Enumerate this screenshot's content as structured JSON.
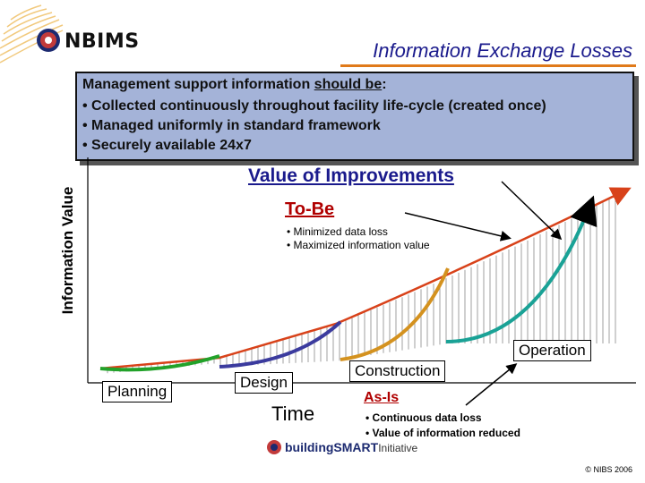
{
  "header": {
    "brand": "NBIMS",
    "title": "Information Exchange Losses",
    "accent_color": "#e07a1a"
  },
  "info_box": {
    "heading_prefix": "Management support information ",
    "heading_underlined": "should be",
    "heading_suffix": ":",
    "bullets": [
      "• Collected continuously throughout facility life-cycle (created once)",
      "• Managed uniformly in standard framework",
      "• Securely available 24x7"
    ],
    "background_color": "#a4b3d8"
  },
  "diagram": {
    "y_axis_label": "Information Value",
    "x_axis_label": "Time",
    "value_label": "Value of Improvements",
    "to_be": {
      "label": "To-Be",
      "bullets": [
        "• Minimized data loss",
        "• Maximized information value"
      ],
      "color": "#d8421a"
    },
    "as_is": {
      "label": "As-Is",
      "bullets": [
        "• Continuous data loss",
        "• Value of information reduced"
      ]
    },
    "stages": {
      "planning": {
        "label": "Planning",
        "color": "#22a22a"
      },
      "design": {
        "label": "Design",
        "color": "#3b3b9e"
      },
      "construction": {
        "label": "Construction",
        "color": "#d4921f"
      },
      "operation": {
        "label": "Operation",
        "color": "#1aa296"
      }
    }
  },
  "footer": {
    "logo_text": "buildingSMART",
    "logo_sub": "Initiative",
    "copyright": "© NIBS 2006"
  }
}
